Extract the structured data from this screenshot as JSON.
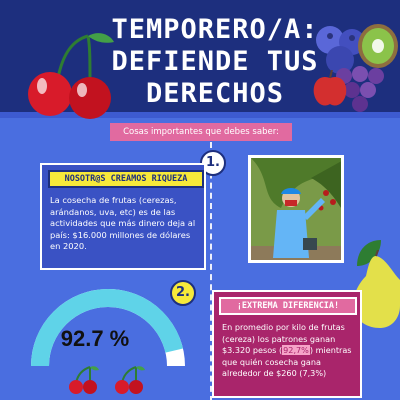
{
  "header": {
    "title_lines": [
      "TEMPORERO/A:",
      "DEFIENDE TUS",
      "DERECHOS"
    ]
  },
  "subtitle": "Cosas importantes que debes saber:",
  "section1": {
    "number": "1.",
    "heading": "NOSOTR@S CREAMOS RIQUEZA",
    "body": "La cosecha de frutas (cerezas, arándanos, uva, etc) es de las actividades que más dinero deja al país: $16.000 millones de dólares en 2020."
  },
  "section2": {
    "number": "2.",
    "heading": "¡EXTREMA DIFERENCIA!",
    "body_before": "En promedio por kilo de frutas (cereza) los patrones ganan $3.320 pesos (",
    "body_highlight": "92,7%",
    "body_after": ") mientras que quién cosecha gana alrededor de $260 (7,3%)"
  },
  "gauge": {
    "value_text": "92.7 %",
    "fraction": 0.927,
    "color_fill": "#5fd3e8",
    "color_track": "#ffffff"
  },
  "colors": {
    "header_bg": "#1d2f7e",
    "body_bg": "#4a6ee0",
    "accent_yellow": "#f6e93a",
    "accent_pink": "#e16aa0",
    "card2_bg": "#a9256b"
  },
  "icons": [
    "cherry-icon",
    "blueberry-icon",
    "kiwi-icon",
    "grapes-icon",
    "apple-icon",
    "pear-icon",
    "leaf-icon"
  ]
}
